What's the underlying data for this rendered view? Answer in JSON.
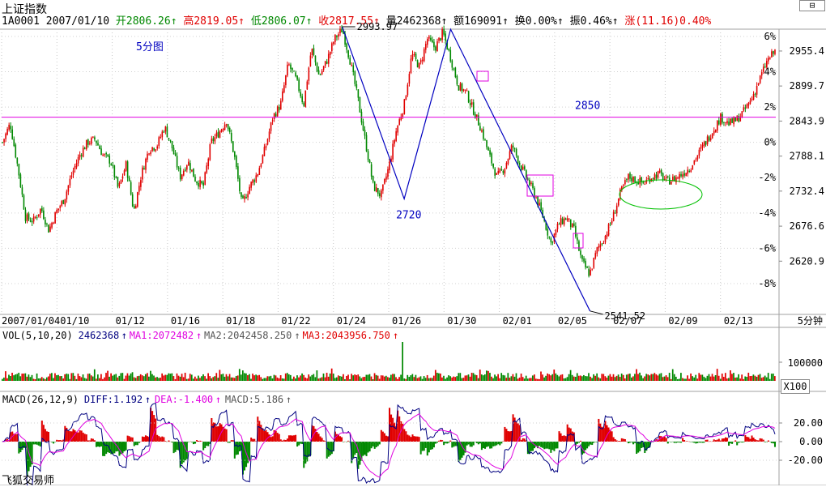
{
  "header": {
    "title": "上证指数",
    "code": "1A0001",
    "date": "2007/01/10",
    "open_label": "开2806.26",
    "high_label": "高2819.05",
    "low_label": "低2806.07",
    "close_label": "收2817.55",
    "volume_label": "量2462368",
    "amount_label": "额169091",
    "turnover_label": "换0.00%",
    "amplitude_label": "振0.46%",
    "change_label": "涨(11.16)0.40%"
  },
  "window": {
    "close_icon_label": "⊟"
  },
  "colors": {
    "up": "#e00000",
    "down": "#008800",
    "dif": "#000080",
    "dea": "#e000e0",
    "line": "#0000c0",
    "ref": "#e000e0"
  },
  "chart_data": [
    {
      "type": "candlestick",
      "title": "上证指数",
      "period_label": "5分钟",
      "y_ticks_price": [
        2955.4,
        2899.7,
        2843.9,
        2788.1,
        2732.4,
        2676.6,
        2620.9
      ],
      "y_ticks_pct": [
        "6%",
        "4%",
        "2%",
        "0%",
        "-2%",
        "-4%",
        "-6%",
        "-8%"
      ],
      "x_ticks": [
        "2007/01/04",
        "01/10",
        "01/12",
        "01/16",
        "01/18",
        "01/22",
        "01/24",
        "01/26",
        "01/30",
        "02/01",
        "02/05",
        "02/07",
        "02/09",
        "02/13"
      ],
      "ylim": [
        2540,
        2985
      ],
      "annotations": {
        "chart_label": "5分图",
        "hline_value": 2850,
        "hline_label": "2850",
        "peak1": {
          "label": "2993.97",
          "value": 2993.97,
          "x_index": 0.44
        },
        "low1_label": "2720",
        "low1_value": 2720,
        "low2": {
          "label": "2541.52",
          "value": 2541.52
        },
        "wave_x": [
          0.44,
          0.52,
          0.58,
          0.76
        ],
        "wave_y": [
          2993.97,
          2720,
          2990,
          2541.52
        ]
      },
      "series_close": [
        2810,
        2840,
        2770,
        2690,
        2685,
        2705,
        2670,
        2700,
        2720,
        2760,
        2790,
        2810,
        2815,
        2790,
        2780,
        2735,
        2775,
        2700,
        2760,
        2800,
        2805,
        2835,
        2800,
        2755,
        2780,
        2750,
        2740,
        2810,
        2825,
        2845,
        2790,
        2710,
        2740,
        2760,
        2800,
        2850,
        2870,
        2935,
        2910,
        2870,
        2960,
        2915,
        2940,
        2975,
        2990,
        2940,
        2880,
        2810,
        2740,
        2725,
        2770,
        2830,
        2870,
        2950,
        2930,
        2975,
        2960,
        2985,
        2945,
        2900,
        2890,
        2860,
        2830,
        2790,
        2755,
        2770,
        2805,
        2775,
        2750,
        2725,
        2690,
        2650,
        2680,
        2690,
        2670,
        2620,
        2600,
        2640,
        2660,
        2690,
        2730,
        2755,
        2750,
        2745,
        2755,
        2760,
        2748,
        2752,
        2760,
        2770,
        2790,
        2810,
        2830,
        2850,
        2840,
        2845,
        2860,
        2880,
        2910,
        2940,
        2955
      ]
    },
    {
      "type": "bar",
      "title": "VOL(5,10,20)",
      "series": [
        {
          "name": "VOL",
          "label": "2462368",
          "value": 2462368
        },
        {
          "name": "MA1",
          "label": "MA1:2072482",
          "value": 2072482
        },
        {
          "name": "MA2",
          "label": "MA2:2042458.250",
          "value": 2042458.25
        },
        {
          "name": "MA3",
          "label": "MA3:2043956.750",
          "value": 2043956.75
        }
      ],
      "y_ticks": [
        "100000"
      ],
      "scale_button": "X100"
    },
    {
      "type": "bar",
      "title": "MACD(26,12,9)",
      "series": [
        {
          "name": "DIFF",
          "label": "DIFF:1.192",
          "value": 1.192
        },
        {
          "name": "DEA",
          "label": "DEA:-1.400",
          "value": -1.4
        },
        {
          "name": "MACD",
          "label": "MACD:5.186",
          "value": 5.186
        }
      ],
      "y_ticks": [
        "20.00",
        "0.00",
        "-20.00"
      ],
      "ylim": [
        -35,
        35
      ]
    }
  ],
  "footer": {
    "brand": "飞狐交易师"
  }
}
